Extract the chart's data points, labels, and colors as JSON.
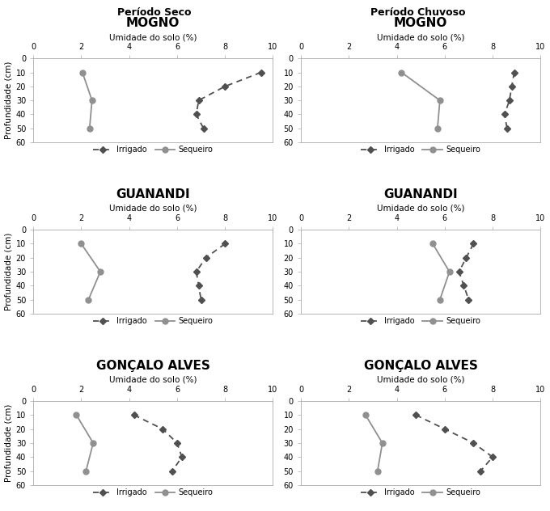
{
  "col_titles": [
    "Período Seco",
    "Período Chuvoso"
  ],
  "row_titles": [
    "MOGNO",
    "GUANANDI",
    "GONÇALO ALVES"
  ],
  "xlabel": "Umidade do solo (%)",
  "ylabel": "Profundidade (cm)",
  "xlim": [
    0,
    10
  ],
  "xticks": [
    0,
    2,
    4,
    6,
    8,
    10
  ],
  "ylim": [
    60,
    0
  ],
  "yticks": [
    0,
    10,
    20,
    30,
    40,
    50,
    60
  ],
  "sequeiro_color": "#909090",
  "irrigado_color": "#505050",
  "data": {
    "mogno_seco": {
      "sequeiro": {
        "x": [
          2.05,
          2.45,
          2.35
        ],
        "y": [
          10,
          30,
          50
        ]
      },
      "irrigado": {
        "x": [
          9.5,
          8.0,
          6.9,
          6.8,
          7.1
        ],
        "y": [
          10,
          20,
          30,
          40,
          50
        ]
      }
    },
    "mogno_chuvoso": {
      "sequeiro": {
        "x": [
          4.2,
          5.8,
          5.7
        ],
        "y": [
          10,
          30,
          50
        ]
      },
      "irrigado": {
        "x": [
          8.9,
          8.8,
          8.7,
          8.5,
          8.6
        ],
        "y": [
          10,
          20,
          30,
          40,
          50
        ]
      }
    },
    "guanandi_seco": {
      "sequeiro": {
        "x": [
          2.0,
          2.8,
          2.3
        ],
        "y": [
          10,
          30,
          50
        ]
      },
      "irrigado": {
        "x": [
          8.0,
          7.2,
          6.8,
          6.9,
          7.0
        ],
        "y": [
          10,
          20,
          30,
          40,
          50
        ]
      }
    },
    "guanandi_chuvoso": {
      "sequeiro": {
        "x": [
          5.5,
          6.2,
          5.8
        ],
        "y": [
          10,
          30,
          50
        ]
      },
      "irrigado": {
        "x": [
          7.2,
          6.9,
          6.6,
          6.8,
          7.0
        ],
        "y": [
          10,
          20,
          30,
          40,
          50
        ]
      }
    },
    "goncalo_seco": {
      "sequeiro": {
        "x": [
          1.8,
          2.5,
          2.2
        ],
        "y": [
          10,
          30,
          50
        ]
      },
      "irrigado": {
        "x": [
          4.2,
          5.4,
          6.0,
          6.2,
          5.8
        ],
        "y": [
          10,
          20,
          30,
          40,
          50
        ]
      }
    },
    "goncalo_chuvoso": {
      "sequeiro": {
        "x": [
          2.7,
          3.4,
          3.2
        ],
        "y": [
          10,
          30,
          50
        ]
      },
      "irrigado": {
        "x": [
          4.8,
          6.0,
          7.2,
          8.0,
          7.5
        ],
        "y": [
          10,
          20,
          30,
          40,
          50
        ]
      }
    }
  }
}
